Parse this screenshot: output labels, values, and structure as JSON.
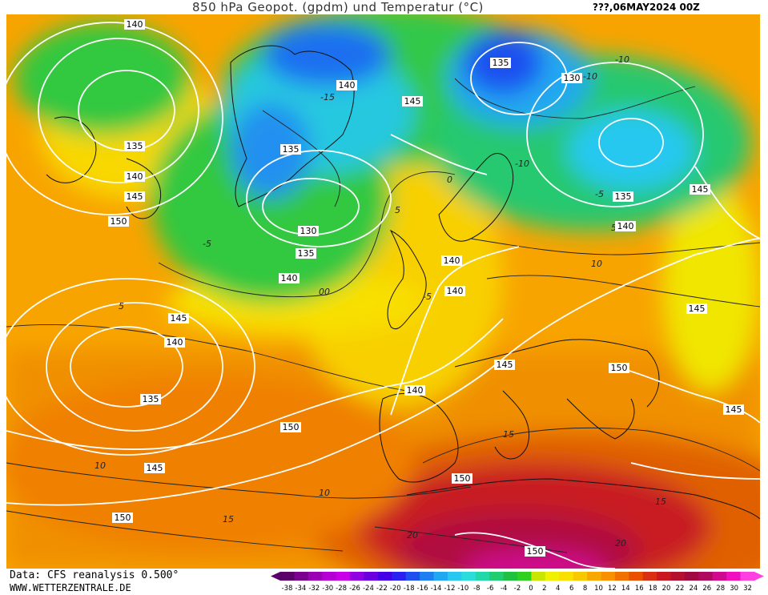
{
  "header": {
    "title": "850 hPa Geopot. (gpdm) und Temperatur (°C)",
    "date": "???,06MAY2024 00Z"
  },
  "footer": {
    "data_source": "Data: CFS reanalysis 0.500°",
    "website": "WWW.WETTERZENTRALE.DE"
  },
  "legend": {
    "ticks": [
      "-38",
      "-34",
      "-32",
      "-30",
      "-28",
      "-26",
      "-24",
      "-22",
      "-20",
      "-18",
      "-16",
      "-14",
      "-12",
      "-10",
      "-8",
      "-6",
      "-4",
      "-2",
      "0",
      "2",
      "4",
      "6",
      "8",
      "10",
      "12",
      "14",
      "16",
      "18",
      "20",
      "22",
      "24",
      "26",
      "28",
      "30",
      "32"
    ],
    "colors": [
      "#5b006b",
      "#7a0090",
      "#9a00b4",
      "#b400d2",
      "#c800e6",
      "#9000e0",
      "#6a00e0",
      "#4400e6",
      "#2a20f0",
      "#1e50f0",
      "#1e80f0",
      "#20a8f0",
      "#28c8f0",
      "#2adcdc",
      "#22d8a8",
      "#22cc70",
      "#20c040",
      "#30d020",
      "#c8e600",
      "#f0f000",
      "#f8e000",
      "#f8c800",
      "#f8a800",
      "#f89000",
      "#f07000",
      "#e85000",
      "#d83010",
      "#c81a20",
      "#b41030",
      "#a00a40",
      "#b00a60",
      "#d00a90",
      "#f010c0",
      "#ff40e0"
    ]
  },
  "map": {
    "geopotential_labels": [
      {
        "value": "140"
      },
      {
        "value": "135"
      },
      {
        "value": "140"
      },
      {
        "value": "145"
      },
      {
        "value": "150"
      },
      {
        "value": "140"
      },
      {
        "value": "145"
      },
      {
        "value": "135"
      },
      {
        "value": "130"
      },
      {
        "value": "135"
      },
      {
        "value": "140"
      },
      {
        "value": "135"
      },
      {
        "value": "130"
      },
      {
        "value": "135"
      },
      {
        "value": "140"
      },
      {
        "value": "145"
      },
      {
        "value": "140"
      },
      {
        "value": "140"
      },
      {
        "value": "145"
      },
      {
        "value": "140"
      },
      {
        "value": "135"
      },
      {
        "value": "150"
      },
      {
        "value": "145"
      },
      {
        "value": "150"
      },
      {
        "value": "140"
      },
      {
        "value": "150"
      },
      {
        "value": "145"
      },
      {
        "value": "150"
      },
      {
        "value": "145"
      },
      {
        "value": "150"
      },
      {
        "value": "145"
      }
    ],
    "temperature_labels": [
      "-15",
      "-10",
      "-5",
      "0",
      "5",
      "10",
      "15",
      "20",
      "-10",
      "-10",
      "-5",
      "0",
      "5",
      "10",
      "15",
      "-5",
      "0",
      "5",
      "10",
      "15",
      "20"
    ]
  }
}
